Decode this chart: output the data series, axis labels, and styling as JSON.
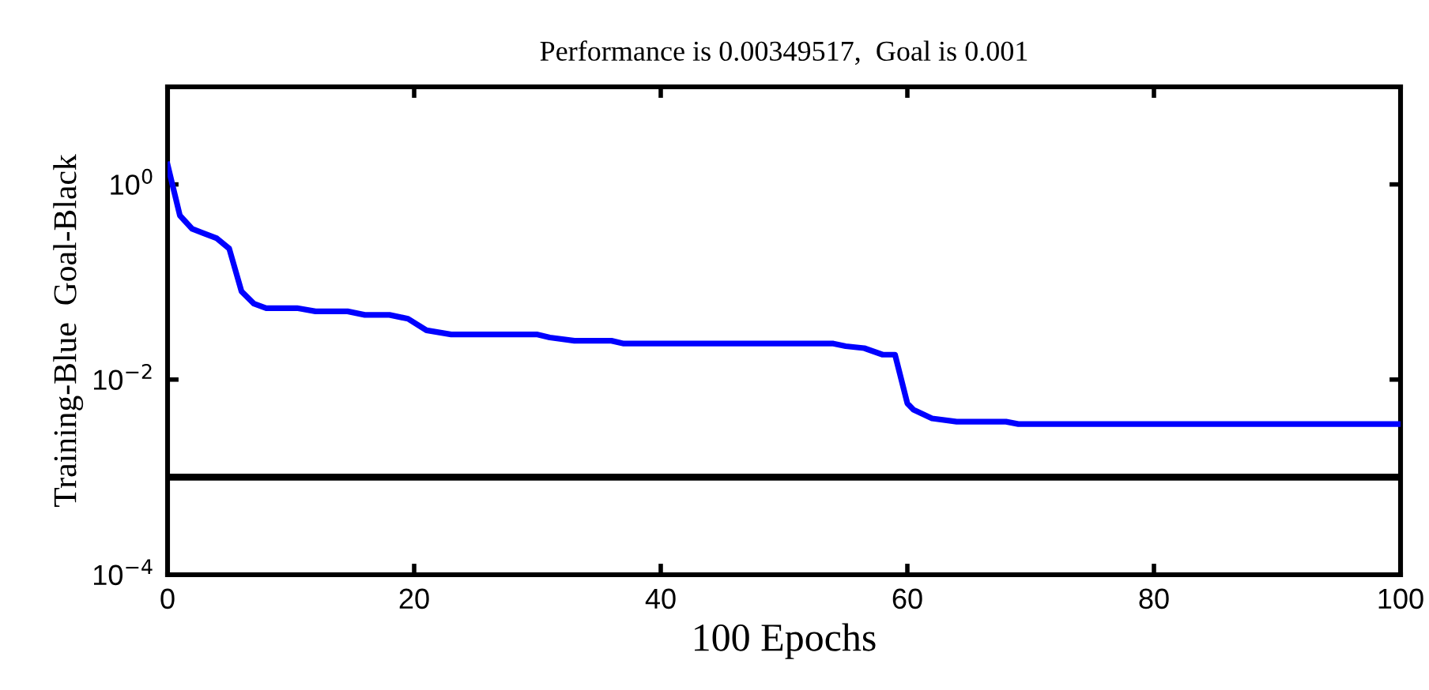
{
  "chart_data": {
    "type": "line",
    "title": "Performance is 0.00349517,  Goal is 0.001",
    "xlabel": "100 Epochs",
    "ylabel": "Training-Blue  Goal-Black",
    "log": "y",
    "grid": false,
    "legend": false,
    "marker": "none",
    "line_style": "solid",
    "xlim": [
      0,
      100
    ],
    "xticks": [
      0,
      20,
      40,
      60,
      80,
      100
    ],
    "ylim": [
      0.0001,
      10
    ],
    "yticks": [
      {
        "value": 0.0001,
        "label": "10$^{−4}$"
      },
      {
        "value": 0.01,
        "label": "10$^{−2}$"
      },
      {
        "value": 1,
        "label": "10$^{0}$"
      }
    ],
    "series": [
      {
        "color": "#0000ff",
        "x": [
          0,
          1,
          2,
          4,
          5,
          6,
          7,
          8,
          10.5,
          12,
          14.6,
          16,
          18,
          19.5,
          21,
          23,
          25,
          30,
          31,
          33,
          36,
          37,
          54,
          55,
          56.5,
          58,
          59,
          60,
          60.5,
          62,
          64,
          68,
          69,
          100
        ],
        "values": [
          1.6,
          0.48,
          0.35,
          0.28,
          0.22,
          0.08,
          0.06,
          0.054,
          0.054,
          0.05,
          0.05,
          0.046,
          0.046,
          0.042,
          0.032,
          0.029,
          0.029,
          0.029,
          0.027,
          0.025,
          0.025,
          0.0234,
          0.0234,
          0.022,
          0.021,
          0.018,
          0.018,
          0.0057,
          0.0049,
          0.004,
          0.0037,
          0.0037,
          0.0035,
          0.0035
        ]
      }
    ],
    "ref_lines": [
      {
        "axis": "y",
        "value": 0.001,
        "color": "#000000",
        "line_style": "solid"
      }
    ]
  }
}
